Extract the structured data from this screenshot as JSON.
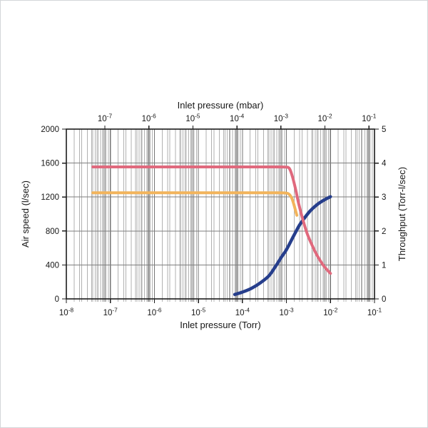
{
  "page": {
    "background": "#ffffff",
    "border_color": "#d3d6d9"
  },
  "chart_data": {
    "type": "line",
    "title": "",
    "legend": null,
    "grid": true,
    "plot_style": {
      "frame_color": "#1c1c1c",
      "grid_major_color": "#767676",
      "grid_minor_color": "#b1b1b1",
      "grid_horizontal_color": "#7e7e7e",
      "tick_color": "#1c1c1c",
      "background": "#ffffff"
    },
    "bottom_axis": {
      "label": "Inlet pressure (Torr)",
      "scale": "log",
      "decade_min": -8,
      "decade_max": -1,
      "tick_base": "10",
      "tick_exponents": [
        -8,
        -7,
        -6,
        -5,
        -4,
        -3,
        -2,
        -1
      ]
    },
    "top_axis": {
      "label": "Inlet pressure (mbar)",
      "scale": "log",
      "tick_base": "10",
      "tick_exponents": [
        -7,
        -6,
        -5,
        -4,
        -3,
        -2,
        -1
      ],
      "torr_to_mbar_offset_decades": 0.1249
    },
    "left_axis": {
      "label": "Air speed (l/sec)",
      "min": 0,
      "max": 2000,
      "tick_step": 400,
      "tick_labels": [
        "0",
        "400",
        "800",
        "1200",
        "1600",
        "2000"
      ]
    },
    "right_axis": {
      "label": "Throughput (Torr-l/sec)",
      "min": 0,
      "max": 5,
      "tick_step": 1,
      "tick_labels": [
        "0",
        "1",
        "2",
        "3",
        "4",
        "5"
      ]
    },
    "series": [
      {
        "id": "air-speed-lower",
        "color": "#f2b45c",
        "width": 4,
        "axis": "left",
        "points": [
          [
            4e-08,
            1250
          ],
          [
            1e-07,
            1250
          ],
          [
            1e-06,
            1250
          ],
          [
            1e-05,
            1250
          ],
          [
            0.0001,
            1250
          ],
          [
            0.0006,
            1250
          ],
          [
            0.0009,
            1248
          ],
          [
            0.0011,
            1240
          ],
          [
            0.0013,
            1195
          ],
          [
            0.00145,
            1125
          ],
          [
            0.0016,
            1045
          ],
          [
            0.00172,
            985
          ]
        ]
      },
      {
        "id": "throughput",
        "color": "#263e8c",
        "width": 4.5,
        "axis": "right",
        "points": [
          [
            6.7e-05,
            0.13
          ],
          [
            0.0001,
            0.2
          ],
          [
            0.00016,
            0.31
          ],
          [
            0.00026,
            0.48
          ],
          [
            0.0004,
            0.68
          ],
          [
            0.00056,
            0.95
          ],
          [
            0.00076,
            1.22
          ],
          [
            0.001,
            1.45
          ],
          [
            0.00145,
            1.85
          ],
          [
            0.00195,
            2.16
          ],
          [
            0.0024,
            2.33
          ],
          [
            0.0034,
            2.58
          ],
          [
            0.0049,
            2.77
          ],
          [
            0.0069,
            2.9
          ],
          [
            0.01,
            3.01
          ]
        ]
      },
      {
        "id": "air-speed-upper",
        "color": "#e0697d",
        "width": 4,
        "axis": "left",
        "points": [
          [
            4e-08,
            1555
          ],
          [
            1e-07,
            1555
          ],
          [
            1e-06,
            1555
          ],
          [
            1e-05,
            1555
          ],
          [
            0.0001,
            1555
          ],
          [
            0.0005,
            1555
          ],
          [
            0.0009,
            1553
          ],
          [
            0.00115,
            1540
          ],
          [
            0.00135,
            1450
          ],
          [
            0.0016,
            1300
          ],
          [
            0.0019,
            1120
          ],
          [
            0.0024,
            920
          ],
          [
            0.003,
            760
          ],
          [
            0.004,
            610
          ],
          [
            0.005,
            510
          ],
          [
            0.007,
            390
          ],
          [
            0.01,
            300
          ]
        ]
      }
    ]
  }
}
